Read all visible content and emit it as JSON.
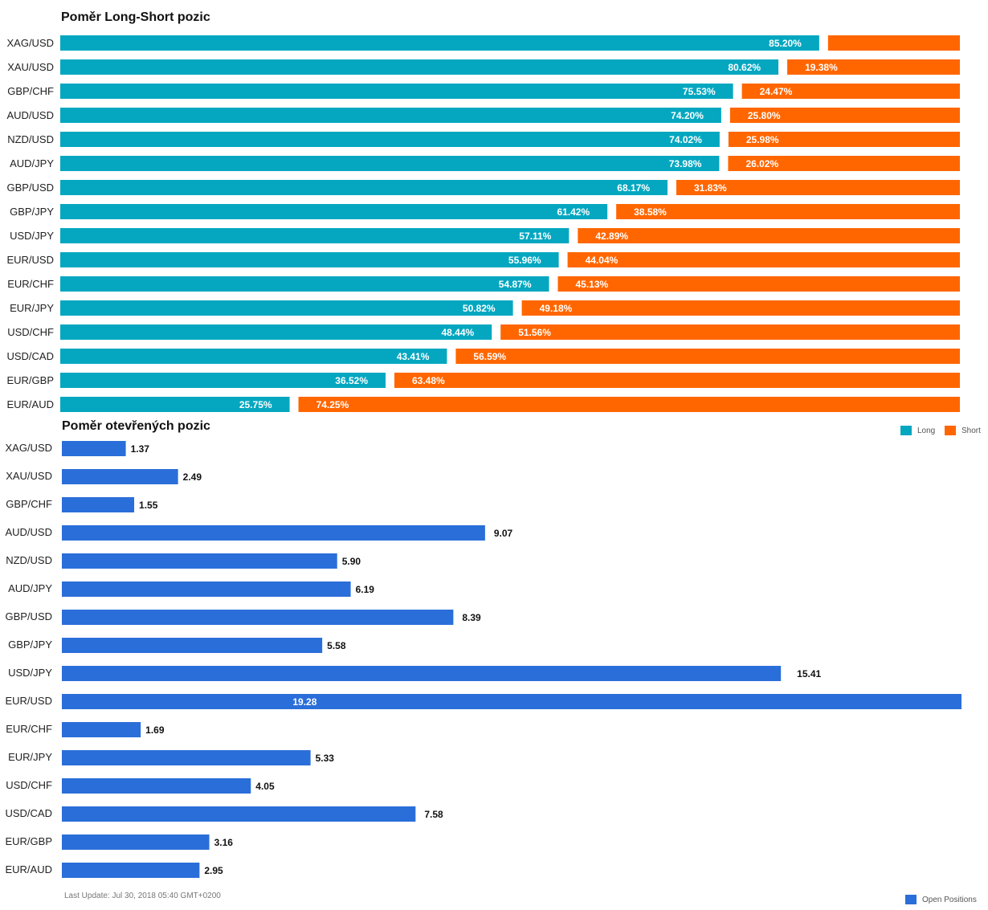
{
  "colors": {
    "long": "#05a7c0",
    "short": "#ff6600",
    "open": "#2a6ed9"
  },
  "legend": {
    "long": "Long",
    "short": "Short",
    "open": "Open Positions"
  },
  "footer": "Last Update: Jul 30, 2018 05:40 GMT+0200",
  "chart_data": [
    {
      "type": "bar",
      "orientation": "horizontal",
      "stacked": true,
      "title": "Poměr Long-Short pozic",
      "categories": [
        "XAG/USD",
        "XAU/USD",
        "GBP/CHF",
        "AUD/USD",
        "NZD/USD",
        "AUD/JPY",
        "GBP/USD",
        "GBP/JPY",
        "USD/JPY",
        "EUR/USD",
        "EUR/CHF",
        "EUR/JPY",
        "USD/CHF",
        "USD/CAD",
        "EUR/GBP",
        "EUR/AUD"
      ],
      "series": [
        {
          "name": "Long",
          "values": [
            85.2,
            80.62,
            75.53,
            74.2,
            74.02,
            73.98,
            68.17,
            61.42,
            57.11,
            55.96,
            54.87,
            50.82,
            48.44,
            43.41,
            36.52,
            25.75
          ],
          "labels": [
            "85.20%",
            "80.62%",
            "75.53%",
            "74.20%",
            "74.02%",
            "73.98%",
            "68.17%",
            "61.42%",
            "57.11%",
            "55.96%",
            "54.87%",
            "50.82%",
            "48.44%",
            "43.41%",
            "36.52%",
            "25.75%"
          ]
        },
        {
          "name": "Short",
          "values": [
            14.8,
            19.38,
            24.47,
            25.8,
            25.98,
            26.02,
            31.83,
            38.58,
            42.89,
            44.04,
            45.13,
            49.18,
            51.56,
            56.59,
            63.48,
            74.25
          ],
          "labels": [
            "",
            "19.38%",
            "24.47%",
            "25.80%",
            "25.98%",
            "26.02%",
            "31.83%",
            "38.58%",
            "42.89%",
            "44.04%",
            "45.13%",
            "49.18%",
            "51.56%",
            "56.59%",
            "63.48%",
            "74.25%"
          ]
        }
      ],
      "legend_position": "bottom-right",
      "grid": false
    },
    {
      "type": "bar",
      "orientation": "horizontal",
      "title": "Poměr otevřených pozic",
      "categories": [
        "XAG/USD",
        "XAU/USD",
        "GBP/CHF",
        "AUD/USD",
        "NZD/USD",
        "AUD/JPY",
        "GBP/USD",
        "GBP/JPY",
        "USD/JPY",
        "EUR/USD",
        "EUR/CHF",
        "EUR/JPY",
        "USD/CHF",
        "USD/CAD",
        "EUR/GBP",
        "EUR/AUD"
      ],
      "series": [
        {
          "name": "Open Positions",
          "values": [
            1.37,
            2.49,
            1.55,
            9.07,
            5.9,
            6.19,
            8.39,
            5.58,
            15.41,
            19.28,
            1.69,
            5.33,
            4.05,
            7.58,
            3.16,
            2.95
          ],
          "labels": [
            "1.37",
            "2.49",
            "1.55",
            "9.07",
            "5.90",
            "6.19",
            "8.39",
            "5.58",
            "15.41",
            "19.28",
            "1.69",
            "5.33",
            "4.05",
            "7.58",
            "3.16",
            "2.95"
          ]
        }
      ],
      "xlim": [
        0,
        19.28
      ],
      "legend_position": "bottom-right",
      "grid": false
    }
  ]
}
